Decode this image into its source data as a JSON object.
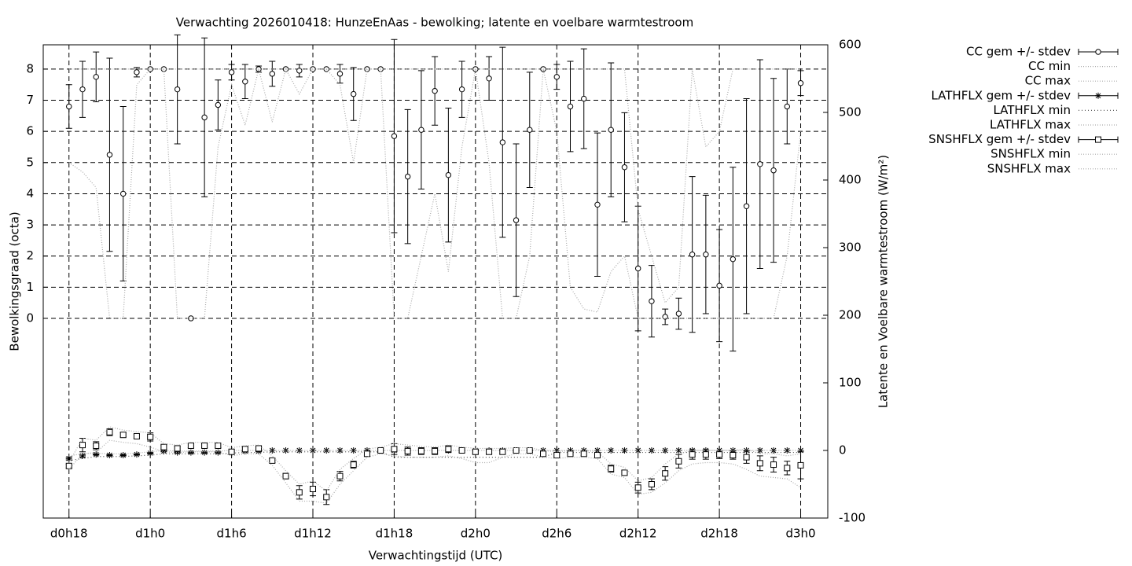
{
  "chart_data": {
    "type": "errorbar-line",
    "title": "Verwachting 2026010418: HunzeEnAas - bewolking; latente en voelbare warmtestroom",
    "xlabel": "Verwachtingstijd (UTC)",
    "ylabel": "Bewolkingsgraad (octa)",
    "y2label": "Latente en Voelbare warmtestroom (W/m²)",
    "x": [
      18,
      19,
      20,
      21,
      22,
      23,
      24,
      25,
      26,
      27,
      28,
      29,
      30,
      31,
      32,
      33,
      34,
      35,
      36,
      37,
      38,
      39,
      40,
      41,
      42,
      43,
      44,
      45,
      46,
      47,
      48,
      49,
      50,
      51,
      52,
      53,
      54,
      55,
      56,
      57,
      58,
      59,
      60,
      61,
      62,
      63,
      64,
      65,
      66,
      67,
      68,
      69,
      70,
      71,
      72
    ],
    "xlim": [
      16.1,
      74
    ],
    "xticks": [
      {
        "value": 18,
        "label": "d0h18"
      },
      {
        "value": 24,
        "label": "d1h0"
      },
      {
        "value": 30,
        "label": "d1h6"
      },
      {
        "value": 36,
        "label": "d1h12"
      },
      {
        "value": 42,
        "label": "d1h18"
      },
      {
        "value": 48,
        "label": "d2h0"
      },
      {
        "value": 54,
        "label": "d2h6"
      },
      {
        "value": 60,
        "label": "d2h12"
      },
      {
        "value": 66,
        "label": "d2h18"
      },
      {
        "value": 72,
        "label": "d3h0"
      }
    ],
    "ylim": [
      -6.41,
      8.78
    ],
    "yticks": [
      0,
      1,
      2,
      3,
      4,
      5,
      6,
      7,
      8
    ],
    "y2lim": [
      -100,
      600
    ],
    "y2ticks": [
      -100,
      0,
      100,
      200,
      300,
      400,
      500,
      600
    ],
    "grid": true,
    "legend": "outside-right",
    "series": [
      {
        "name": "CC gem +/- stdev",
        "style": "errorbars",
        "marker": "circle",
        "color": "#000000",
        "axis": "y",
        "values": [
          6.8,
          7.35,
          7.75,
          5.25,
          4.0,
          7.9,
          8,
          8,
          7.35,
          0,
          6.45,
          6.85,
          7.9,
          7.6,
          8,
          7.85,
          8,
          7.95,
          8,
          8,
          7.85,
          7.2,
          8,
          8,
          5.85,
          4.55,
          6.05,
          7.3,
          4.6,
          7.35,
          8,
          7.7,
          5.65,
          3.15,
          6.05,
          8,
          7.75,
          6.8,
          7.05,
          3.65,
          6.05,
          4.85,
          1.6,
          0.55,
          0.05,
          0.15,
          2.05,
          2.05,
          1.05,
          1.9,
          3.6,
          4.95,
          4.75,
          6.8,
          7.55
        ],
        "errors": [
          0.7,
          0.9,
          0.8,
          3.1,
          2.8,
          0.15,
          0,
          0,
          1.75,
          0,
          2.55,
          0.8,
          0.25,
          0.55,
          0.1,
          0.4,
          0,
          0.2,
          0,
          0,
          0.3,
          0.85,
          0,
          0,
          3.1,
          2.15,
          1.9,
          1.1,
          2.15,
          0.9,
          0,
          0.7,
          3.05,
          2.45,
          1.85,
          0,
          0.4,
          1.45,
          1.6,
          2.3,
          2.15,
          1.75,
          2.0,
          1.15,
          0.25,
          0.5,
          2.5,
          1.9,
          1.8,
          2.95,
          3.45,
          3.35,
          2.95,
          1.2,
          0.4
        ]
      },
      {
        "name": "CC min",
        "style": "dotted",
        "color": "#aaaaaa",
        "axis": "y",
        "values": [
          5.0,
          4.7,
          4.2,
          0,
          0,
          7.5,
          8,
          8,
          0,
          0,
          0,
          5.5,
          7.5,
          6.2,
          8,
          6.3,
          8,
          7.2,
          8,
          8,
          7.5,
          5,
          8,
          8,
          0,
          0,
          2,
          4,
          1.5,
          5.5,
          8,
          5,
          0,
          0,
          2,
          8,
          6,
          1,
          0.3,
          0.2,
          1.5,
          2,
          0,
          0,
          0,
          0,
          0,
          0,
          0,
          0,
          0,
          0,
          0,
          2,
          6
        ]
      },
      {
        "name": "CC max",
        "style": "dotted",
        "color": "#aaaaaa",
        "axis": "y",
        "values": [
          8,
          8,
          8,
          8,
          8,
          8,
          8,
          8,
          8,
          8,
          8,
          8,
          8,
          8,
          8,
          8,
          8,
          8,
          8,
          8,
          8,
          8,
          8,
          8,
          8,
          8,
          8,
          8,
          8,
          8,
          8,
          8,
          8,
          8,
          8,
          8,
          8,
          8,
          8,
          8,
          8,
          8,
          3.5,
          2,
          0.5,
          1,
          8,
          5.5,
          6,
          8,
          8,
          8,
          8,
          8,
          8
        ]
      },
      {
        "name": "LATHFLX gem +/- stdev",
        "style": "errorbars",
        "marker": "star",
        "color": "#000000",
        "axis": "y2",
        "values": [
          -12,
          -8,
          -6,
          -7,
          -7,
          -6,
          -4,
          -1,
          -3,
          -3,
          -3,
          -3,
          -2,
          -1,
          -1,
          0,
          0,
          0,
          0,
          0,
          0,
          0,
          0,
          0,
          0,
          0,
          0,
          0,
          0,
          0,
          0,
          0,
          0,
          0,
          0,
          0,
          0,
          0,
          0,
          0,
          0,
          0,
          0,
          0,
          0,
          0,
          0,
          0,
          0,
          0,
          0,
          0,
          0,
          0,
          0
        ],
        "errors": [
          2,
          2,
          1,
          1,
          1,
          1,
          1,
          1,
          1,
          1,
          1,
          1,
          1,
          1,
          1,
          0,
          0,
          0,
          0,
          0,
          0,
          0,
          0,
          0,
          0,
          0,
          0,
          0,
          0,
          0,
          0,
          0,
          0,
          0,
          0,
          0,
          0,
          0,
          0,
          0,
          0,
          0,
          0,
          0,
          0,
          0,
          0,
          0,
          0,
          0,
          0,
          0,
          0,
          0,
          0
        ]
      },
      {
        "name": "LATHFLX min",
        "style": "dotted",
        "color": "#555555",
        "axis": "y2",
        "values": [
          -15,
          -12,
          -9,
          -9,
          -9,
          -8,
          -7,
          -5,
          -5,
          -5,
          -5,
          -5,
          -4,
          -3,
          -3,
          -2,
          -2,
          -2,
          -2,
          -2,
          -2,
          -2,
          -2,
          -2,
          -10,
          -10,
          -10,
          -10,
          -10,
          -10,
          -10,
          -10,
          -10,
          -10,
          -10,
          -10,
          -3,
          -3,
          -3,
          -3,
          -3,
          -3,
          -3,
          -3,
          -3,
          -3,
          -3,
          -3,
          -3,
          -3,
          -3,
          -3,
          -3,
          -3,
          -3
        ]
      },
      {
        "name": "LATHFLX max",
        "style": "dotted",
        "color": "#aaaaaa",
        "axis": "y2",
        "values": [
          -8,
          -5,
          -4,
          -5,
          -5,
          -4,
          -2,
          0,
          -1,
          -1,
          -1,
          -1,
          0,
          0,
          0,
          0,
          0,
          0,
          0,
          0,
          0,
          0,
          0,
          0,
          0,
          0,
          0,
          0,
          0,
          0,
          0,
          0,
          0,
          0,
          0,
          0,
          0,
          0,
          0,
          0,
          0,
          0,
          0,
          0,
          0,
          0,
          0,
          0,
          0,
          0,
          0,
          0,
          0,
          0,
          0
        ]
      },
      {
        "name": "SNSHFLX gem +/- stdev",
        "style": "errorbars",
        "marker": "square",
        "color": "#000000",
        "axis": "y2",
        "values": [
          -23,
          8,
          7,
          27,
          23,
          21,
          20,
          5,
          3,
          7,
          7,
          7,
          -2,
          2,
          3,
          -15,
          -38,
          -62,
          -57,
          -69,
          -38,
          -21,
          -5,
          0,
          2,
          -1,
          -1,
          -1,
          2,
          0,
          -2,
          -2,
          -2,
          0,
          0,
          -5,
          -7,
          -5,
          -5,
          -7,
          -27,
          -33,
          -55,
          -50,
          -34,
          -16,
          -6,
          -6,
          -6,
          -7,
          -10,
          -19,
          -21,
          -26,
          -22
        ],
        "errors": [
          3,
          10,
          6,
          5,
          3,
          3,
          6,
          3,
          3,
          3,
          3,
          3,
          3,
          3,
          3,
          3,
          4,
          10,
          10,
          11,
          7,
          5,
          3,
          3,
          8,
          6,
          5,
          5,
          5,
          3,
          3,
          3,
          3,
          3,
          3,
          3,
          3,
          3,
          3,
          3,
          5,
          3,
          8,
          8,
          10,
          10,
          7,
          7,
          6,
          6,
          9,
          11,
          11,
          10,
          20
        ]
      },
      {
        "name": "SNSHFLX min",
        "style": "dotted",
        "color": "#aaaaaa",
        "axis": "y2",
        "values": [
          -28,
          -5,
          -3,
          15,
          12,
          10,
          5,
          -2,
          -3,
          -2,
          -2,
          -2,
          -8,
          -5,
          -5,
          -22,
          -48,
          -75,
          -75,
          -78,
          -50,
          -30,
          -10,
          -5,
          -8,
          -10,
          -10,
          -10,
          -8,
          -12,
          -18,
          -18,
          -10,
          -5,
          -5,
          -10,
          -12,
          -10,
          -10,
          -12,
          -35,
          -40,
          -65,
          -62,
          -48,
          -30,
          -20,
          -18,
          -18,
          -20,
          -28,
          -38,
          -40,
          -42,
          -55
        ]
      },
      {
        "name": "SNSHFLX max",
        "style": "dotted",
        "color": "#aaaaaa",
        "axis": "y2",
        "values": [
          -18,
          18,
          15,
          35,
          30,
          28,
          26,
          10,
          8,
          12,
          12,
          12,
          4,
          7,
          8,
          -8,
          -30,
          -50,
          -45,
          -60,
          -28,
          -12,
          2,
          5,
          10,
          8,
          6,
          5,
          8,
          5,
          3,
          3,
          3,
          4,
          4,
          0,
          -2,
          0,
          0,
          -2,
          -20,
          -25,
          -45,
          -40,
          -20,
          -5,
          0,
          0,
          0,
          0,
          2,
          -5,
          -5,
          -8,
          -5
        ]
      }
    ]
  }
}
